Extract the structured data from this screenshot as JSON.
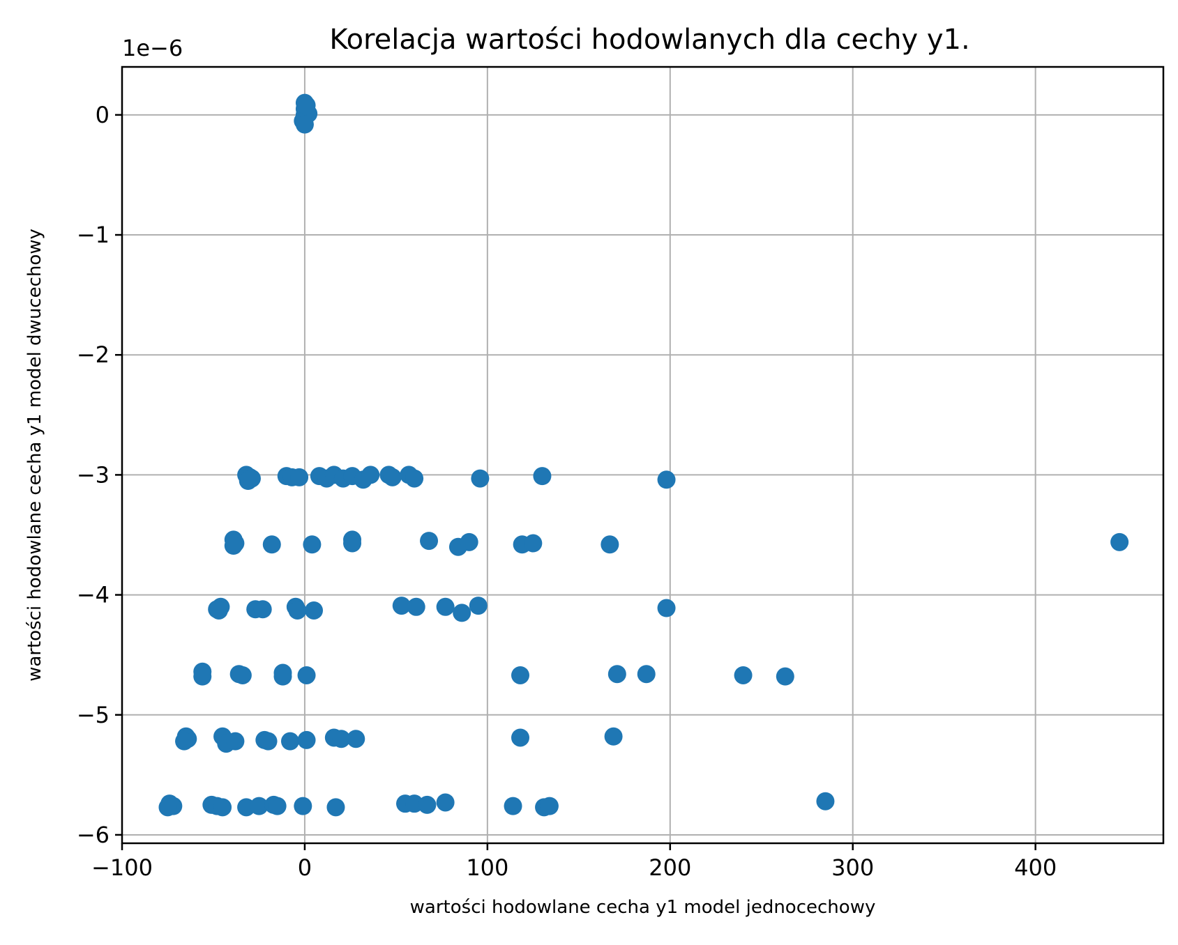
{
  "chart_data": {
    "type": "scatter",
    "title": "Korelacja wartości hodowlanych dla cechy y1.",
    "xlabel": "wartości hodowlane cecha y1 model jednocechowy",
    "ylabel": "wartości hodowlane cecha y1 model dwucechowy",
    "y_offset_text": "1e−6",
    "xlim": [
      -100,
      470
    ],
    "ylim": [
      -6.07,
      0.4
    ],
    "y_scale_factor": 1e-06,
    "grid": true,
    "marker_color": "#1f77b4",
    "x_ticks": [
      {
        "value": -100,
        "label": "−100"
      },
      {
        "value": 0,
        "label": "0"
      },
      {
        "value": 100,
        "label": "100"
      },
      {
        "value": 200,
        "label": "200"
      },
      {
        "value": 300,
        "label": "300"
      },
      {
        "value": 400,
        "label": "400"
      }
    ],
    "y_ticks": [
      {
        "value": 0,
        "label": "0"
      },
      {
        "value": -1,
        "label": "−1"
      },
      {
        "value": -2,
        "label": "−2"
      },
      {
        "value": -3,
        "label": "−3"
      },
      {
        "value": -4,
        "label": "−4"
      },
      {
        "value": -5,
        "label": "−5"
      },
      {
        "value": -6,
        "label": "−6"
      }
    ],
    "points": [
      [
        0,
        0.1
      ],
      [
        0,
        0.05
      ],
      [
        0,
        0
      ],
      [
        2,
        0.01
      ],
      [
        -1,
        -0.05
      ],
      [
        0,
        -0.08
      ],
      [
        1,
        0.08
      ],
      [
        -32,
        -3.0
      ],
      [
        -30,
        -3.02
      ],
      [
        -31,
        -3.05
      ],
      [
        -29,
        -3.03
      ],
      [
        -10,
        -3.01
      ],
      [
        -7,
        -3.02
      ],
      [
        -3,
        -3.02
      ],
      [
        8,
        -3.01
      ],
      [
        12,
        -3.03
      ],
      [
        16,
        -3.0
      ],
      [
        21,
        -3.03
      ],
      [
        26,
        -3.01
      ],
      [
        32,
        -3.04
      ],
      [
        36,
        -3.0
      ],
      [
        46,
        -3.0
      ],
      [
        48,
        -3.02
      ],
      [
        57,
        -3.0
      ],
      [
        60,
        -3.03
      ],
      [
        96,
        -3.03
      ],
      [
        130,
        -3.01
      ],
      [
        198,
        -3.04
      ],
      [
        -39,
        -3.54
      ],
      [
        -38,
        -3.57
      ],
      [
        -39,
        -3.59
      ],
      [
        -18,
        -3.58
      ],
      [
        4,
        -3.58
      ],
      [
        26,
        -3.54
      ],
      [
        26,
        -3.57
      ],
      [
        68,
        -3.55
      ],
      [
        84,
        -3.6
      ],
      [
        90,
        -3.56
      ],
      [
        119,
        -3.58
      ],
      [
        125,
        -3.57
      ],
      [
        167,
        -3.58
      ],
      [
        446,
        -3.56
      ],
      [
        -48,
        -4.12
      ],
      [
        -46,
        -4.1
      ],
      [
        -47,
        -4.13
      ],
      [
        -27,
        -4.12
      ],
      [
        -23,
        -4.12
      ],
      [
        -5,
        -4.1
      ],
      [
        -4,
        -4.13
      ],
      [
        5,
        -4.13
      ],
      [
        53,
        -4.09
      ],
      [
        61,
        -4.1
      ],
      [
        77,
        -4.1
      ],
      [
        86,
        -4.15
      ],
      [
        95,
        -4.09
      ],
      [
        198,
        -4.11
      ],
      [
        -56,
        -4.64
      ],
      [
        -56,
        -4.68
      ],
      [
        -36,
        -4.66
      ],
      [
        -34,
        -4.67
      ],
      [
        -12,
        -4.65
      ],
      [
        -12,
        -4.68
      ],
      [
        1,
        -4.67
      ],
      [
        118,
        -4.67
      ],
      [
        171,
        -4.66
      ],
      [
        187,
        -4.66
      ],
      [
        240,
        -4.67
      ],
      [
        263,
        -4.68
      ],
      [
        -65,
        -5.18
      ],
      [
        -64,
        -5.2
      ],
      [
        -66,
        -5.22
      ],
      [
        -45,
        -5.18
      ],
      [
        -43,
        -5.24
      ],
      [
        -38,
        -5.22
      ],
      [
        -22,
        -5.21
      ],
      [
        -20,
        -5.22
      ],
      [
        -8,
        -5.22
      ],
      [
        1,
        -5.21
      ],
      [
        16,
        -5.19
      ],
      [
        20,
        -5.2
      ],
      [
        28,
        -5.2
      ],
      [
        118,
        -5.19
      ],
      [
        169,
        -5.18
      ],
      [
        -74,
        -5.74
      ],
      [
        -72,
        -5.76
      ],
      [
        -75,
        -5.77
      ],
      [
        -51,
        -5.75
      ],
      [
        -48,
        -5.76
      ],
      [
        -45,
        -5.77
      ],
      [
        -32,
        -5.77
      ],
      [
        -25,
        -5.76
      ],
      [
        -17,
        -5.75
      ],
      [
        -15,
        -5.76
      ],
      [
        -1,
        -5.76
      ],
      [
        17,
        -5.77
      ],
      [
        55,
        -5.74
      ],
      [
        60,
        -5.74
      ],
      [
        67,
        -5.75
      ],
      [
        77,
        -5.73
      ],
      [
        114,
        -5.76
      ],
      [
        131,
        -5.77
      ],
      [
        134,
        -5.76
      ],
      [
        285,
        -5.72
      ]
    ]
  }
}
